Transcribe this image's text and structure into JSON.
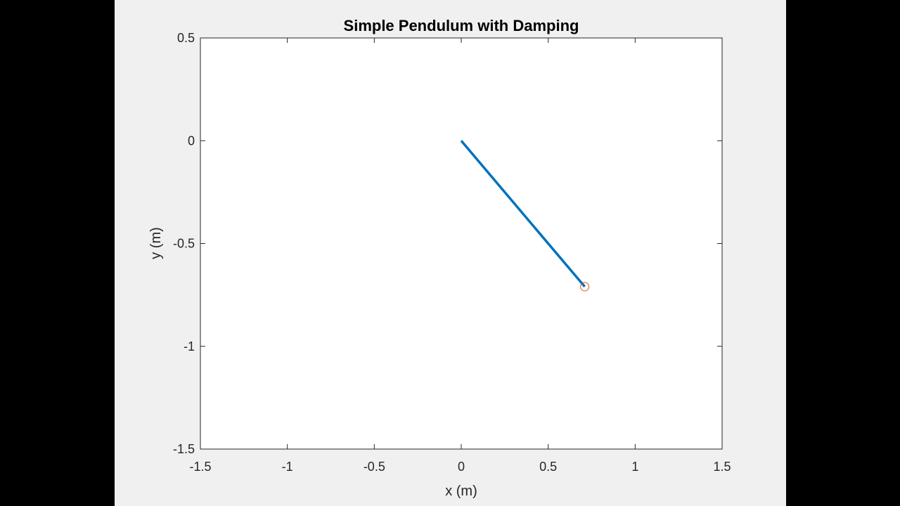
{
  "chart_data": {
    "type": "line",
    "title": "Simple Pendulum with Damping",
    "xlabel": "x (m)",
    "ylabel": "y (m)",
    "xlim": [
      -1.5,
      1.5
    ],
    "ylim": [
      -1.5,
      0.5
    ],
    "xticks": [
      -1.5,
      -1,
      -0.5,
      0,
      0.5,
      1,
      1.5
    ],
    "xtick_labels": [
      "-1.5",
      "-1",
      "-0.5",
      "0",
      "0.5",
      "1",
      "1.5"
    ],
    "yticks": [
      -1.5,
      -1,
      -0.5,
      0,
      0.5
    ],
    "ytick_labels": [
      "-1.5",
      "-1",
      "-0.5",
      "0",
      "0.5"
    ],
    "grid": false,
    "series": [
      {
        "marker": "none",
        "color": "#0072BD",
        "x": [
          0,
          0.71
        ],
        "y": [
          0,
          -0.71
        ]
      },
      {
        "marker": "circle",
        "color": "#D95319",
        "x": [
          0.71
        ],
        "y": [
          -0.71
        ]
      }
    ]
  },
  "colors": {
    "page_background": "#000000",
    "figure_background": "#f0f0f0",
    "axes_background": "#ffffff",
    "axes_color": "#262626"
  }
}
